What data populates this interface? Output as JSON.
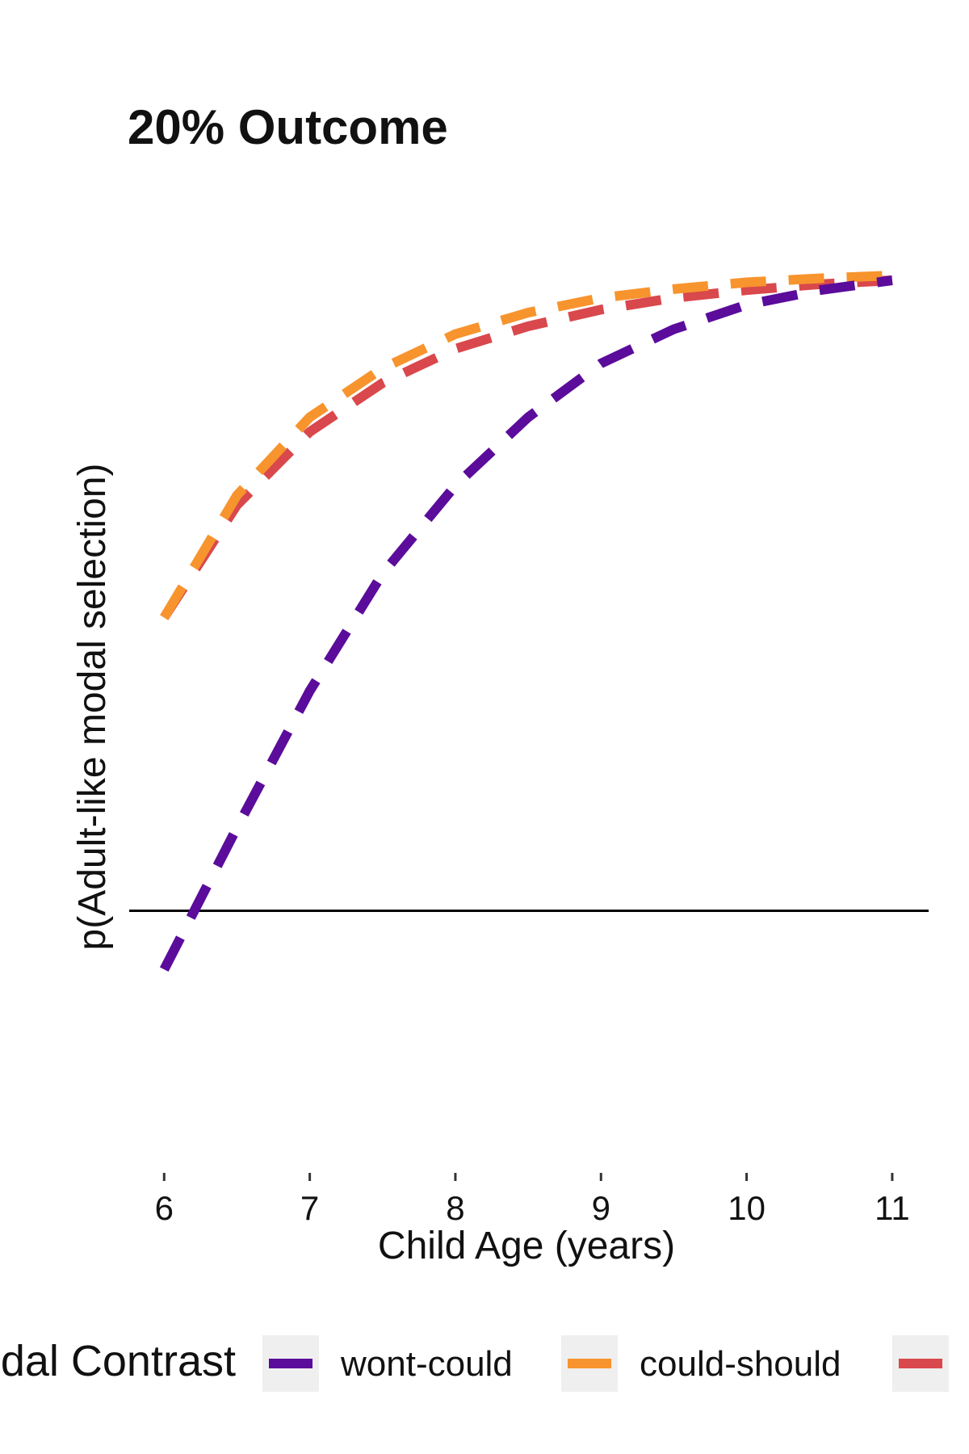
{
  "chart_data": {
    "type": "line",
    "title": "20% Outcome",
    "xlabel": "Child Age (years)",
    "ylabel": "p(Adult-like modal selection)",
    "xlim": [
      5.76,
      11.25
    ],
    "x_ticks": [
      6,
      7,
      8,
      9,
      10,
      11
    ],
    "x_tick_labels": [
      "6",
      "7",
      "8",
      "9",
      "10",
      "11"
    ],
    "ylim": [
      0.0,
      1.0
    ],
    "reference_line_y": 0.25,
    "grid": false,
    "legend": {
      "title": "Modal Contrast",
      "position": "bottom"
    },
    "x": [
      6.0,
      6.5,
      7.0,
      7.5,
      8.0,
      8.5,
      9.0,
      9.5,
      10.0,
      10.5,
      11.0
    ],
    "series": [
      {
        "name": "wont-could",
        "color": "#5b0c9b",
        "values": [
          0.19,
          0.335,
          0.475,
          0.595,
          0.685,
          0.755,
          0.81,
          0.845,
          0.87,
          0.885,
          0.895
        ]
      },
      {
        "name": "could-should",
        "color": "#f7942d",
        "values": [
          0.55,
          0.675,
          0.755,
          0.805,
          0.84,
          0.862,
          0.877,
          0.886,
          0.893,
          0.897,
          0.9
        ]
      },
      {
        "name": "",
        "color": "#d9484c",
        "values": [
          0.55,
          0.665,
          0.74,
          0.79,
          0.825,
          0.848,
          0.865,
          0.877,
          0.885,
          0.891,
          0.895
        ]
      }
    ]
  }
}
